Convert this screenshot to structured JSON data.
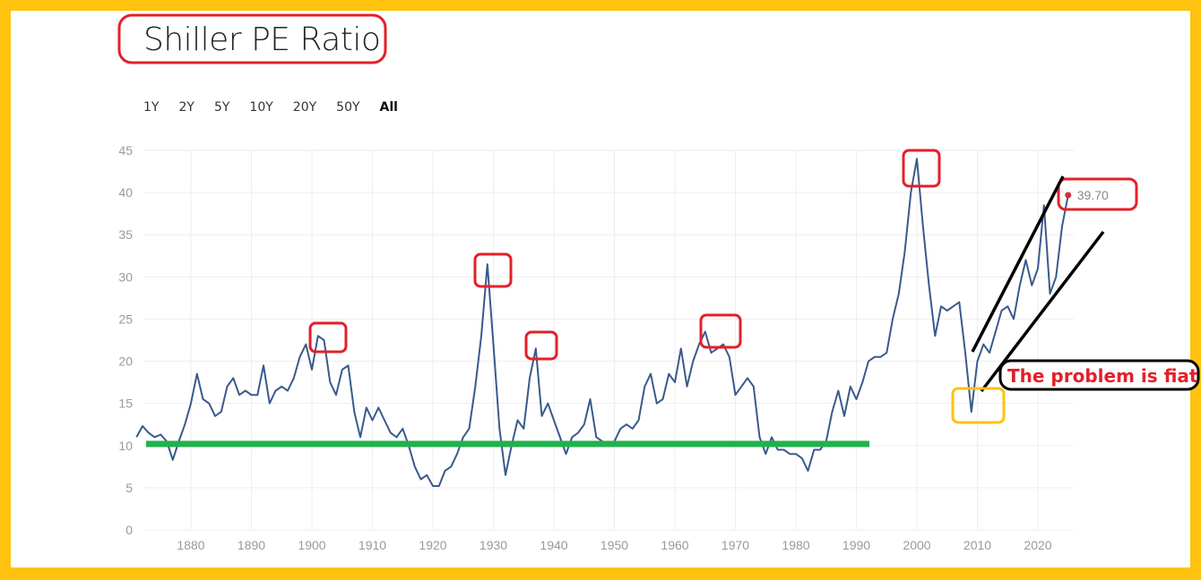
{
  "title": "Shiller PE Ratio",
  "ranges": [
    "1Y",
    "2Y",
    "5Y",
    "10Y",
    "20Y",
    "50Y",
    "All"
  ],
  "active_range": "All",
  "annotation_text": "The problem is fiat",
  "colors": {
    "line": "#3A5A8C",
    "frame": "#FFC20E",
    "highlight": "#E3202A",
    "support": "#22B14C",
    "trend": "#000000",
    "dip": "#FFC20E"
  },
  "chart_data": {
    "type": "line",
    "title": "Shiller PE Ratio",
    "xlabel": "",
    "ylabel": "",
    "xlim": [
      1871,
      2026
    ],
    "ylim": [
      0,
      45
    ],
    "yticks": [
      0,
      5,
      10,
      15,
      20,
      25,
      30,
      35,
      40,
      45
    ],
    "xticks": [
      1880,
      1890,
      1900,
      1910,
      1920,
      1930,
      1940,
      1950,
      1960,
      1970,
      1980,
      1990,
      2000,
      2010,
      2020
    ],
    "grid": true,
    "last_value_label": "39.70",
    "x": [
      1871,
      1872,
      1873,
      1874,
      1875,
      1876,
      1877,
      1878,
      1879,
      1880,
      1881,
      1882,
      1883,
      1884,
      1885,
      1886,
      1887,
      1888,
      1889,
      1890,
      1891,
      1892,
      1893,
      1894,
      1895,
      1896,
      1897,
      1898,
      1899,
      1900,
      1901,
      1902,
      1903,
      1904,
      1905,
      1906,
      1907,
      1908,
      1909,
      1910,
      1911,
      1912,
      1913,
      1914,
      1915,
      1916,
      1917,
      1918,
      1919,
      1920,
      1921,
      1922,
      1923,
      1924,
      1925,
      1926,
      1927,
      1928,
      1929,
      1930,
      1931,
      1932,
      1933,
      1934,
      1935,
      1936,
      1937,
      1938,
      1939,
      1940,
      1941,
      1942,
      1943,
      1944,
      1945,
      1946,
      1947,
      1948,
      1949,
      1950,
      1951,
      1952,
      1953,
      1954,
      1955,
      1956,
      1957,
      1958,
      1959,
      1960,
      1961,
      1962,
      1963,
      1964,
      1965,
      1966,
      1967,
      1968,
      1969,
      1970,
      1971,
      1972,
      1973,
      1974,
      1975,
      1976,
      1977,
      1978,
      1979,
      1980,
      1981,
      1982,
      1983,
      1984,
      1985,
      1986,
      1987,
      1988,
      1989,
      1990,
      1991,
      1992,
      1993,
      1994,
      1995,
      1996,
      1997,
      1998,
      1999,
      2000,
      2001,
      2002,
      2003,
      2004,
      2005,
      2006,
      2007,
      2008,
      2009,
      2010,
      2011,
      2012,
      2013,
      2014,
      2015,
      2016,
      2017,
      2018,
      2019,
      2020,
      2021,
      2022,
      2023,
      2024,
      2025
    ],
    "values": [
      11,
      12.3,
      11.5,
      11,
      11.3,
      10.5,
      8.3,
      10.5,
      12.5,
      15,
      18.5,
      15.5,
      15,
      13.5,
      14,
      17,
      18,
      16,
      16.5,
      16,
      16,
      19.5,
      15,
      16.5,
      17,
      16.5,
      18,
      20.5,
      22,
      19,
      23,
      22.5,
      17.5,
      16,
      19,
      19.5,
      14,
      11,
      14.5,
      13,
      14.5,
      13,
      11.5,
      11,
      12,
      10,
      7.5,
      6,
      6.5,
      5.2,
      5.2,
      7,
      7.5,
      9,
      11,
      12,
      17,
      23,
      31.5,
      22,
      12,
      6.5,
      10,
      13,
      12,
      18,
      21.5,
      13.5,
      15,
      13,
      11,
      9,
      11,
      11.5,
      12.5,
      15.5,
      11,
      10.5,
      10,
      10.5,
      12,
      12.5,
      12,
      13,
      17,
      18.5,
      15,
      15.5,
      18.5,
      17.5,
      21.5,
      17,
      20,
      22,
      23.5,
      21,
      21.5,
      22,
      20.5,
      16,
      17,
      18,
      17,
      11,
      9,
      11,
      9.5,
      9.5,
      9,
      9,
      8.5,
      7,
      9.5,
      9.5,
      10.5,
      14,
      16.5,
      13.5,
      17,
      15.5,
      17.5,
      20,
      20.5,
      20.5,
      21,
      25,
      28,
      33,
      40,
      44,
      36,
      29,
      23,
      26.5,
      26,
      26.5,
      27,
      21,
      14,
      20,
      22,
      21,
      23.5,
      26,
      26.5,
      25,
      29,
      32,
      29,
      31,
      38.5,
      28,
      30,
      36,
      39.7
    ]
  }
}
